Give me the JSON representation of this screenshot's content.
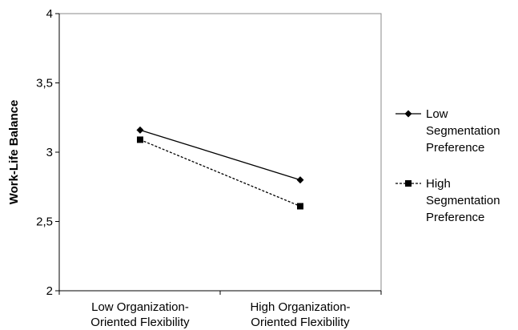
{
  "chart_data": {
    "type": "line",
    "title": "",
    "xlabel": "",
    "ylabel": "Work-Life Balance",
    "categories": [
      [
        "Low Organization-",
        "Oriented Flexibility"
      ],
      [
        "High Organization-",
        "Oriented Flexibility"
      ]
    ],
    "y_ticks": [
      "2",
      "2,5",
      "3",
      "3,5",
      "4"
    ],
    "ylim": [
      2,
      4
    ],
    "grid": false,
    "legend_position": "right",
    "series": [
      {
        "name": [
          "Low",
          "Segmentation",
          "Preference"
        ],
        "values": [
          3.16,
          2.8
        ],
        "marker": "diamond",
        "line_style": "solid",
        "color": "#000000"
      },
      {
        "name": [
          "High",
          "Segmentation",
          "Preference"
        ],
        "values": [
          3.09,
          2.61
        ],
        "marker": "square",
        "line_style": "dashed",
        "color": "#000000"
      }
    ]
  }
}
